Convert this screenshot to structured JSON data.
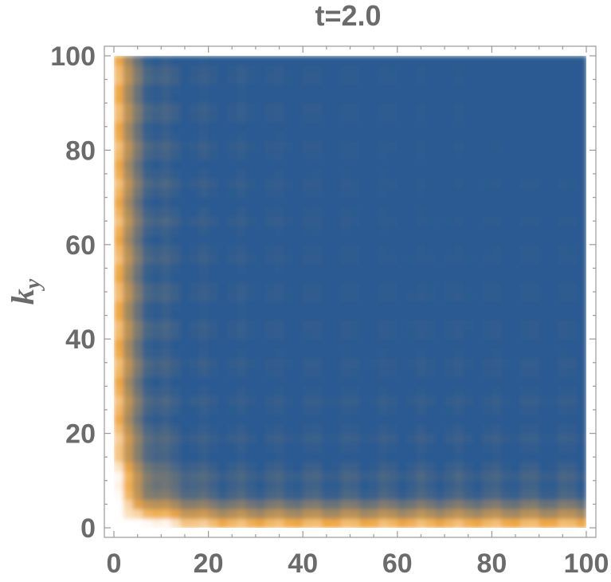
{
  "chart_data": {
    "type": "heatmap",
    "title": "t=2.0",
    "xlabel": "",
    "ylabel": "k",
    "ylabel_subscript": "y",
    "xlim": [
      0,
      100
    ],
    "ylim": [
      0,
      100
    ],
    "x_ticks": [
      0,
      20,
      40,
      60,
      80,
      100
    ],
    "y_ticks": [
      0,
      20,
      40,
      60,
      80,
      100
    ],
    "x_tick_labels": [
      "0",
      "20",
      "40",
      "60",
      "80",
      "100"
    ],
    "y_tick_labels": [
      "0",
      "20",
      "40",
      "60",
      "80",
      "100"
    ],
    "grid": false,
    "legend": "none",
    "colormap": {
      "low": "#ffffff",
      "mid": "#f0a742",
      "high": "#2b5a91"
    },
    "description_values": {
      "dominant_value_color": "#2b5a91",
      "edge_band_color": "#f0a742",
      "origin_color": "#ffffff"
    }
  }
}
